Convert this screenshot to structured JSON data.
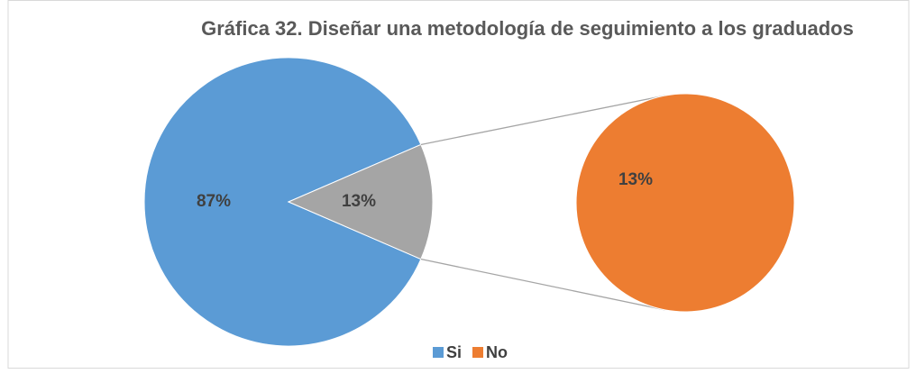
{
  "chart_data": {
    "type": "pie-of-pie",
    "title": "Gráfica 32. Diseñar una metodología de seguimiento a los graduados",
    "categories": [
      "Si",
      "No"
    ],
    "values": [
      87,
      13
    ],
    "value_labels": [
      "87%",
      "13%"
    ],
    "colors": [
      "#5b9bd5",
      "#ed7d31"
    ],
    "split_color": "#a5a5a5",
    "legend": "bottom"
  }
}
